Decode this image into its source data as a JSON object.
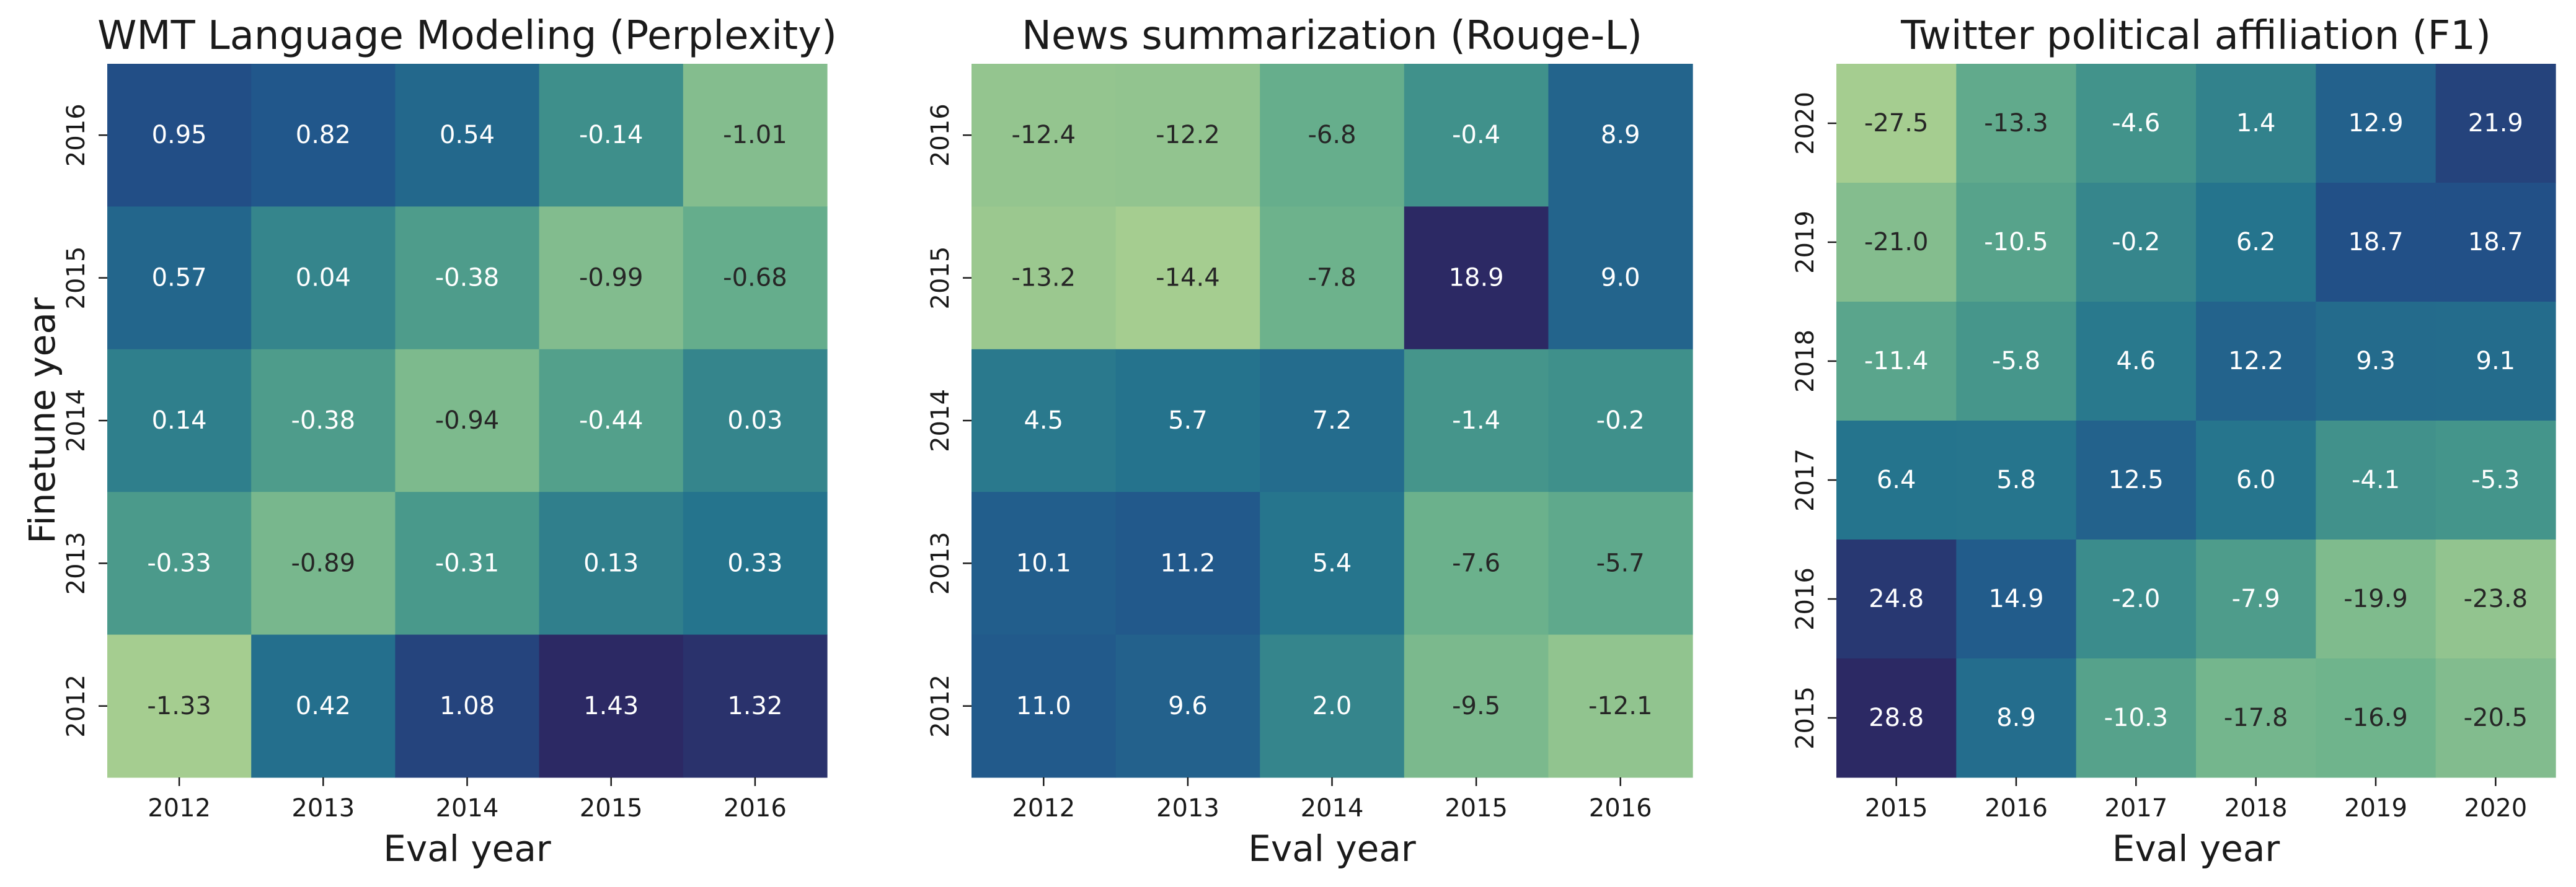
{
  "chart_data": [
    {
      "type": "heatmap",
      "title": "WMT Language Modeling (Perplexity)",
      "xlabel": "Eval year",
      "ylabel": "Finetune year",
      "x": [
        "2012",
        "2013",
        "2014",
        "2015",
        "2016"
      ],
      "y": [
        "2016",
        "2015",
        "2014",
        "2013",
        "2012"
      ],
      "values": [
        [
          0.95,
          0.82,
          0.54,
          -0.14,
          -1.01
        ],
        [
          0.57,
          0.04,
          -0.38,
          -0.99,
          -0.68
        ],
        [
          0.14,
          -0.38,
          -0.94,
          -0.44,
          0.03
        ],
        [
          -0.33,
          -0.89,
          -0.31,
          0.13,
          0.33
        ],
        [
          -1.33,
          0.42,
          1.08,
          1.43,
          1.32
        ]
      ],
      "labels": [
        [
          "0.95",
          "0.82",
          "0.54",
          "-0.14",
          "-1.01"
        ],
        [
          "0.57",
          "0.04",
          "-0.38",
          "-0.99",
          "-0.68"
        ],
        [
          "0.14",
          "-0.38",
          "-0.94",
          "-0.44",
          "0.03"
        ],
        [
          "-0.33",
          "-0.89",
          "-0.31",
          "0.13",
          "0.33"
        ],
        [
          "-1.33",
          "0.42",
          "1.08",
          "1.43",
          "1.32"
        ]
      ],
      "colormap": "crest"
    },
    {
      "type": "heatmap",
      "title": "News summarization (Rouge-L)",
      "xlabel": "Eval year",
      "ylabel": "",
      "x": [
        "2012",
        "2013",
        "2014",
        "2015",
        "2016"
      ],
      "y": [
        "2016",
        "2015",
        "2014",
        "2013",
        "2012"
      ],
      "values": [
        [
          -12.4,
          -12.2,
          -6.8,
          -0.4,
          8.9
        ],
        [
          -13.2,
          -14.4,
          -7.8,
          18.9,
          9.0
        ],
        [
          4.5,
          5.7,
          7.2,
          -1.4,
          -0.2
        ],
        [
          10.1,
          11.2,
          5.4,
          -7.6,
          -5.7
        ],
        [
          11.0,
          9.6,
          2.0,
          -9.5,
          -12.1
        ]
      ],
      "labels": [
        [
          "-12.4",
          "-12.2",
          "-6.8",
          "-0.4",
          "8.9"
        ],
        [
          "-13.2",
          "-14.4",
          "-7.8",
          "18.9",
          "9.0"
        ],
        [
          "4.5",
          "5.7",
          "7.2",
          "-1.4",
          "-0.2"
        ],
        [
          "10.1",
          "11.2",
          "5.4",
          "-7.6",
          "-5.7"
        ],
        [
          "11.0",
          "9.6",
          "2.0",
          "-9.5",
          "-12.1"
        ]
      ],
      "colormap": "crest"
    },
    {
      "type": "heatmap",
      "title": "Twitter political affiliation (F1)",
      "xlabel": "Eval year",
      "ylabel": "",
      "x": [
        "2015",
        "2016",
        "2017",
        "2018",
        "2019",
        "2020"
      ],
      "y": [
        "2020",
        "2019",
        "2018",
        "2017",
        "2016",
        "2015"
      ],
      "values": [
        [
          -27.5,
          -13.3,
          -4.6,
          1.4,
          12.9,
          21.9
        ],
        [
          -21.0,
          -10.5,
          -0.2,
          6.2,
          18.7,
          18.7
        ],
        [
          -11.4,
          -5.8,
          4.6,
          12.2,
          9.3,
          9.1
        ],
        [
          6.4,
          5.8,
          12.5,
          6.0,
          -4.1,
          -5.3
        ],
        [
          24.8,
          14.9,
          -2.0,
          -7.9,
          -19.9,
          -23.8
        ],
        [
          28.8,
          8.9,
          -10.3,
          -17.8,
          -16.9,
          -20.5
        ]
      ],
      "labels": [
        [
          "-27.5",
          "-13.3",
          "-4.6",
          "1.4",
          "12.9",
          "21.9"
        ],
        [
          "-21.0",
          "-10.5",
          "-0.2",
          "6.2",
          "18.7",
          "18.7"
        ],
        [
          "-11.4",
          "-5.8",
          "4.6",
          "12.2",
          "9.3",
          "9.1"
        ],
        [
          "6.4",
          "5.8",
          "12.5",
          "6.0",
          "-4.1",
          "-5.3"
        ],
        [
          "24.8",
          "14.9",
          "-2.0",
          "-7.9",
          "-19.9",
          "-23.8"
        ],
        [
          "28.8",
          "8.9",
          "-10.3",
          "-17.8",
          "-16.9",
          "-20.5"
        ]
      ],
      "colormap": "crest"
    }
  ]
}
